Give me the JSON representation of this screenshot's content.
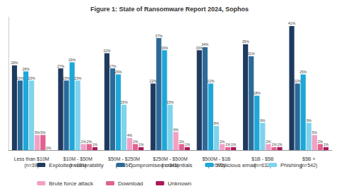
{
  "chart_data": {
    "type": "bar",
    "title": "Figure 1: State of Ransomware Report 2024, Sophos",
    "categories": [
      "Less than $10M\n(n=39)",
      "$10M - $50M\n(n=291)",
      "$50M - $250M\n(n=557)",
      "$250M - $500M\n(n=341)",
      "$500M - $1B\n(n=572)",
      "$1B - $5B\n(n=632)",
      "$5B +\n(n=542)"
    ],
    "series": [
      {
        "name": "Exploited vulnerability",
        "color": "#1f3a5f",
        "values": [
          28,
          27,
          32,
          22,
          33,
          35,
          41
        ],
        "value_labels": [
          "28%",
          "27%",
          "32%",
          "22%",
          "33%",
          "35%",
          "41%"
        ]
      },
      {
        "name": "Compromised credentials",
        "color": "#2b6a99",
        "values": [
          23,
          23,
          27,
          37,
          34,
          31,
          22
        ],
        "value_labels": [
          "23%",
          "23%",
          "27%",
          "37%",
          "34%",
          "31%",
          "22%"
        ]
      },
      {
        "name": "Malicious email",
        "color": "#1ea7d8",
        "values": [
          26,
          29,
          25,
          33,
          22,
          18,
          25
        ],
        "value_labels": [
          "26%",
          "29%",
          "25%",
          "33%",
          "22%",
          "18%",
          "25%"
        ]
      },
      {
        "name": "Phishing",
        "color": "#7fd3ec",
        "values": [
          23,
          23,
          15,
          15,
          8,
          9,
          9
        ],
        "value_labels": [
          "23%",
          "23%",
          "15%",
          "15%",
          "8%",
          "9%",
          "9%"
        ]
      },
      {
        "name": "Brute force attack",
        "color": "#f3a0c4",
        "values": [
          5,
          2,
          4,
          6,
          2,
          2,
          5
        ],
        "value_labels": [
          "5%",
          "2%",
          "4%",
          "6%",
          "2%",
          "2%",
          "5%"
        ]
      },
      {
        "name": "Download",
        "color": "#e0628f",
        "values": [
          5,
          2,
          2,
          2,
          1,
          1,
          2
        ],
        "value_labels": [
          "5%",
          "2%",
          "2%",
          "2%",
          "1%",
          "1%",
          "2%"
        ]
      },
      {
        "name": "Unknown",
        "color": "#a8185a",
        "values": [
          0,
          1,
          1,
          1,
          1,
          1,
          1
        ],
        "value_labels": [
          "0%",
          "1%",
          "1%",
          "1%",
          "1%",
          "1%",
          "1%"
        ]
      }
    ],
    "ylim": [
      0,
      44
    ],
    "grid": false,
    "legend": "bottom",
    "data_labels": true,
    "tick_labels": "x"
  }
}
